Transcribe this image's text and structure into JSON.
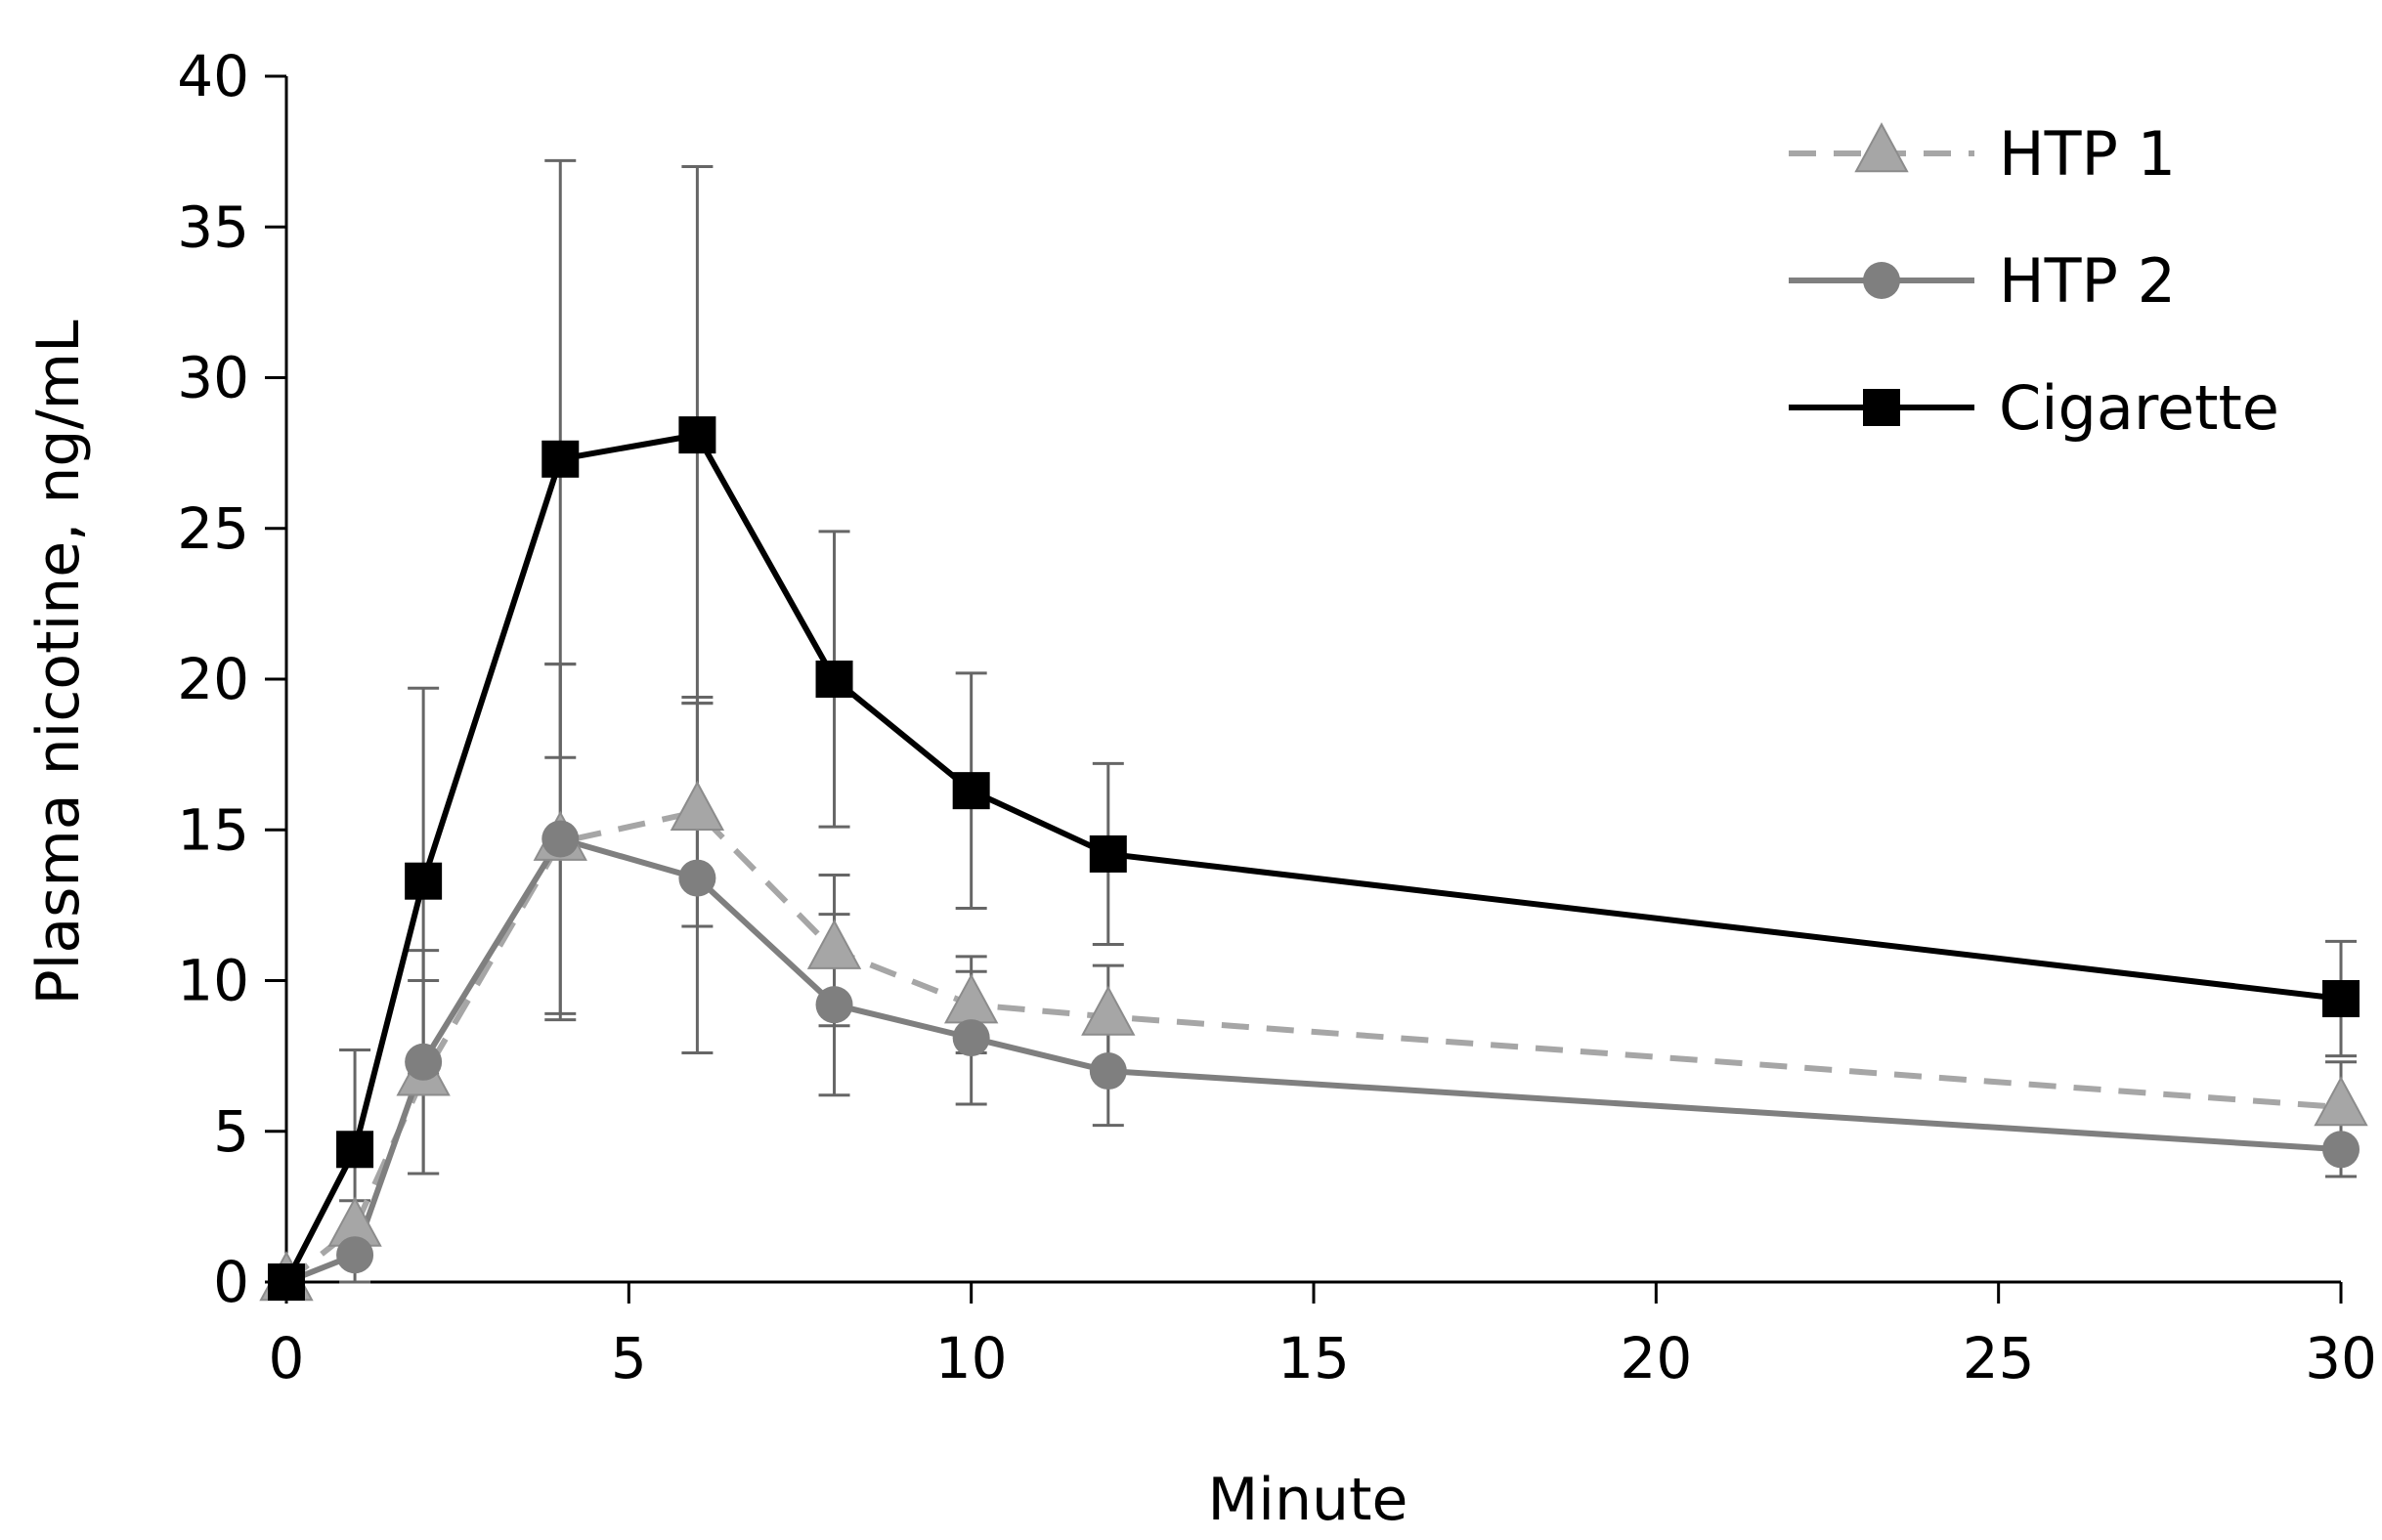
{
  "chart_data": {
    "type": "line",
    "title": "",
    "xlabel": "Minute",
    "ylabel": "Plasma nicotine, ng/mL",
    "xlim": [
      0,
      30
    ],
    "ylim": [
      0,
      40
    ],
    "x_ticks": [
      0,
      5,
      10,
      15,
      20,
      25,
      30
    ],
    "y_ticks": [
      0,
      5,
      10,
      15,
      20,
      25,
      30,
      35,
      40
    ],
    "x_tick_labels": [
      "0",
      "5",
      "10",
      "15",
      "20",
      "25",
      "30"
    ],
    "y_tick_labels": [
      "0",
      "5",
      "10",
      "15",
      "20",
      "25",
      "30",
      "35",
      "40"
    ],
    "grid": false,
    "legend_position": "top-right",
    "x": [
      0,
      1,
      2,
      4,
      6,
      8,
      10,
      12,
      30
    ],
    "series": [
      {
        "name": "HTP 1",
        "color": "#a6a6a6",
        "line_style": "dashed",
        "marker": "triangle",
        "values": [
          0,
          1.8,
          6.8,
          14.6,
          15.6,
          11.0,
          9.2,
          8.8,
          5.8
        ],
        "error_upper": [
          0,
          0.9,
          3.2,
          5.9,
          3.8,
          2.5,
          1.6,
          1.7,
          1.5
        ],
        "error_lower": [
          0,
          0.9,
          3.2,
          5.9,
          3.8,
          2.5,
          1.6,
          1.7,
          1.5
        ]
      },
      {
        "name": "HTP 2",
        "color": "#7f7f7f",
        "line_style": "solid",
        "marker": "circle",
        "values": [
          0,
          0.9,
          7.3,
          14.7,
          13.4,
          9.2,
          8.1,
          7.0,
          4.4
        ],
        "error_upper": [
          0,
          0.9,
          3.7,
          5.8,
          5.8,
          3.0,
          2.2,
          1.8,
          0.9
        ],
        "error_lower": [
          0,
          0.9,
          3.7,
          5.8,
          5.8,
          3.0,
          2.2,
          1.8,
          0.9
        ]
      },
      {
        "name": "Cigarette",
        "color": "#000000",
        "line_style": "solid",
        "marker": "square",
        "values": [
          0,
          4.4,
          13.3,
          27.3,
          28.1,
          20.0,
          16.3,
          14.2,
          9.4
        ],
        "error_upper": [
          0,
          3.3,
          6.4,
          9.9,
          8.9,
          4.9,
          3.9,
          3.0,
          1.9
        ],
        "error_lower": [
          0,
          3.3,
          6.4,
          9.9,
          8.9,
          4.9,
          3.9,
          3.0,
          1.9
        ]
      }
    ]
  }
}
